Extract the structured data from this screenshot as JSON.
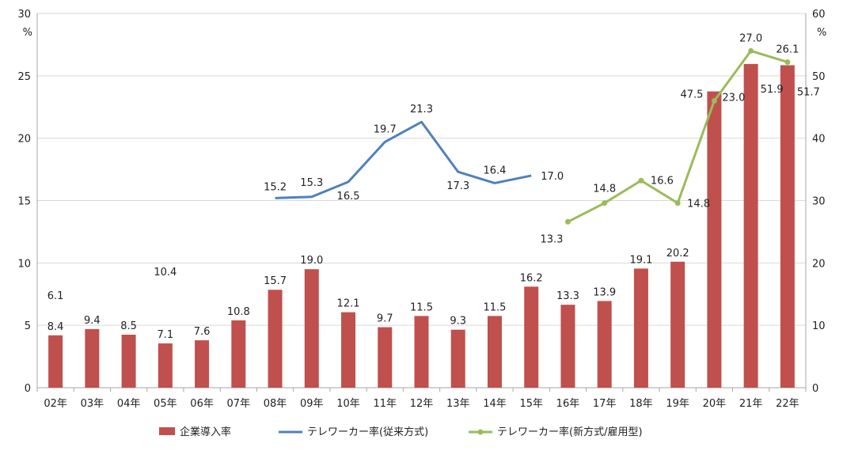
{
  "chart_data": {
    "type": "bar+line",
    "categories": [
      "02年",
      "03年",
      "04年",
      "05年",
      "06年",
      "07年",
      "08年",
      "09年",
      "10年",
      "11年",
      "12年",
      "13年",
      "14年",
      "15年",
      "16年",
      "17年",
      "18年",
      "19年",
      "20年",
      "21年",
      "22年"
    ],
    "y_left": {
      "unit": "%",
      "range": [
        0,
        30
      ],
      "ticks": [
        "0",
        "5",
        "10",
        "15",
        "20",
        "25",
        "30"
      ]
    },
    "y_right": {
      "unit": "%",
      "range": [
        0,
        60
      ],
      "ticks": [
        "0",
        "10",
        "20",
        "30",
        "40",
        "50",
        "60"
      ]
    },
    "grid": "horizontal",
    "legend_position": "bottom",
    "series": [
      {
        "name": "企業導入率",
        "kind": "bar",
        "axis": "right",
        "color": "#C0504D",
        "values": [
          8.4,
          9.4,
          8.5,
          7.1,
          7.6,
          10.8,
          15.7,
          19.0,
          12.1,
          9.7,
          11.5,
          9.3,
          11.5,
          16.2,
          13.3,
          13.9,
          19.1,
          20.2,
          47.5,
          51.9,
          51.7
        ],
        "labels": [
          "8.4",
          "9.4",
          "8.5",
          "7.1",
          "7.6",
          "10.8",
          "15.7",
          "19.0",
          "12.1",
          "9.7",
          "11.5",
          "9.3",
          "11.5",
          "16.2",
          "13.3",
          "13.9",
          "19.1",
          "20.2",
          "47.5",
          "51.9",
          "51.7"
        ]
      },
      {
        "name": "テレワーカー率(従来方式)",
        "kind": "line",
        "axis": "left",
        "color": "#4F81BD",
        "values": [
          6.1,
          null,
          null,
          10.4,
          null,
          null,
          15.2,
          15.3,
          16.5,
          19.7,
          21.3,
          17.3,
          16.4,
          17.0,
          null,
          null,
          null,
          null,
          null,
          null,
          null
        ],
        "labels": [
          "6.1",
          "",
          "",
          "10.4",
          "",
          "",
          "15.2",
          "15.3",
          "16.5",
          "19.7",
          "21.3",
          "17.3",
          "16.4",
          "17.0",
          "",
          "",
          "",
          "",
          "",
          "",
          ""
        ]
      },
      {
        "name": "テレワーカー率(新方式/雇用型)",
        "kind": "line",
        "axis": "left",
        "color": "#9BBB59",
        "markers": true,
        "values": [
          null,
          null,
          null,
          null,
          null,
          null,
          null,
          null,
          null,
          null,
          null,
          null,
          null,
          null,
          13.3,
          14.8,
          16.6,
          14.8,
          23.0,
          27.0,
          26.1
        ],
        "labels": [
          "",
          "",
          "",
          "",
          "",
          "",
          "",
          "",
          "",
          "",
          "",
          "",
          "",
          "",
          "13.3",
          "14.8",
          "16.6",
          "14.8",
          "23.0",
          "27.0",
          "26.1"
        ]
      }
    ]
  }
}
